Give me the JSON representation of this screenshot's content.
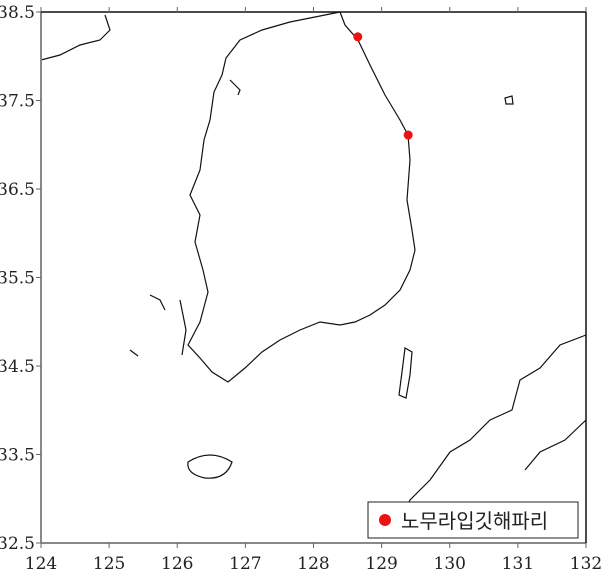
{
  "chart_data": {
    "type": "scatter",
    "xlim": [
      124,
      132
    ],
    "ylim": [
      32.5,
      38.5
    ],
    "x_ticks": [
      "124",
      "125",
      "126",
      "127",
      "128",
      "129",
      "130",
      "131",
      "132"
    ],
    "y_ticks": [
      "32.5",
      "33.5",
      "34.5",
      "35.5",
      "36.5",
      "37.5",
      "38.5"
    ],
    "grid": false,
    "legend_placement": "bottom-right",
    "series": [
      {
        "name": "노무라입깃해파리",
        "color": "#ee1111",
        "points": [
          {
            "lon": 128.65,
            "lat": 38.22
          },
          {
            "lon": 129.39,
            "lat": 37.11
          }
        ]
      }
    ]
  }
}
